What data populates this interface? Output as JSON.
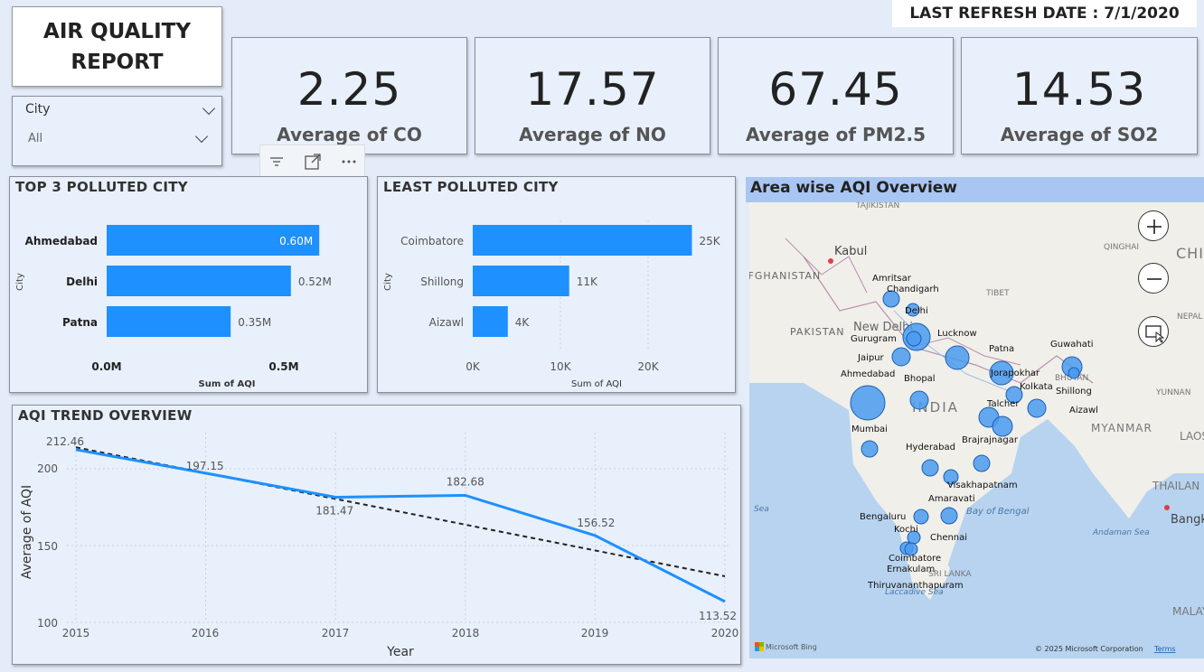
{
  "report": {
    "title_line1": "AIR QUALITY",
    "title_line2": "REPORT",
    "last_refresh": "LAST REFRESH DATE : 7/1/2020"
  },
  "slicer": {
    "label": "City",
    "value": "All"
  },
  "kpis": [
    {
      "value": "2.25",
      "caption": "Average of CO"
    },
    {
      "value": "17.57",
      "caption": "Average of NO"
    },
    {
      "value": "67.45",
      "caption": "Average of PM2.5"
    },
    {
      "value": "14.53",
      "caption": "Average of SO2"
    }
  ],
  "colors": {
    "bar": "#1e90ff",
    "line": "#1e90ff",
    "trend": "#222222",
    "map_bubble": "#4a9af0"
  },
  "chart_data": [
    {
      "type": "bar",
      "title": "TOP 3 POLLUTED CITY",
      "categories": [
        "Ahmedabad",
        "Delhi",
        "Patna"
      ],
      "values": [
        600000,
        520000,
        350000
      ],
      "data_labels": [
        "0.60M",
        "0.52M",
        "0.35M"
      ],
      "xlabel": "Sum of AQI",
      "ylabel": "City",
      "xlim": [
        0,
        650000
      ],
      "xticks": [
        "0.0M",
        "0.5M"
      ]
    },
    {
      "type": "bar",
      "title": "LEAST POLLUTED CITY",
      "categories": [
        "Coimbatore",
        "Shillong",
        "Aizawl"
      ],
      "values": [
        25000,
        11000,
        4000
      ],
      "data_labels": [
        "25K",
        "11K",
        "4K"
      ],
      "xlabel": "Sum of AQI",
      "ylabel": "City",
      "xlim": [
        0,
        26000
      ],
      "xticks": [
        "0K",
        "10K",
        "20K"
      ]
    },
    {
      "type": "line",
      "title": "AQI TREND OVERVIEW",
      "x": [
        2015,
        2016,
        2017,
        2018,
        2019,
        2020
      ],
      "values": [
        212.46,
        197.15,
        181.47,
        182.68,
        156.52,
        113.52
      ],
      "data_labels": [
        "212.46",
        "197.15",
        "181.47",
        "182.68",
        "156.52",
        "113.52"
      ],
      "trend_start": 214,
      "trend_end": 130,
      "xlabel": "Year",
      "ylabel": "Average of AQI",
      "ylim": [
        100,
        220
      ],
      "yticks": [
        "100",
        "150",
        "200"
      ],
      "xticks": [
        "2015",
        "2016",
        "2017",
        "2018",
        "2019",
        "2020"
      ]
    }
  ],
  "map": {
    "title": "Area wise AQI Overview",
    "country_labels": [
      "AFGHANISTAN",
      "PAKISTAN",
      "INDIA",
      "TIBET",
      "QINGHAI",
      "CHIN",
      "NEPAL",
      "BHUTAN",
      "MYANMAR",
      "THAILAN",
      "LAOS",
      "YUNNAN",
      "SRI LANKA",
      "TAJIKISTAN"
    ],
    "places": [
      "Kabul",
      "New Delhi",
      "Bangk",
      "Bay of Bengal",
      "Andaman Sea",
      "Laccadive Sea",
      "Sea",
      "MALAY"
    ],
    "cities": [
      "Amritsar",
      "Chandigarh",
      "Delhi",
      "Gurugram",
      "Lucknow",
      "Jaipur",
      "Patna",
      "Guwahati",
      "Ahmedabad",
      "Bhopal",
      "Jorapokhar",
      "Shillong",
      "Kolkata",
      "Talcher",
      "Aizawl",
      "Mumbai",
      "Brajrajnagar",
      "Hyderabad",
      "Visakhapatnam",
      "Amaravati",
      "Bengaluru",
      "Kochi",
      "Chennai",
      "Coimbatore",
      "Ernakulam",
      "Thiruvananthapuram"
    ],
    "attribution": "Microsoft Bing",
    "copyright": "© 2025 Microsoft Corporation",
    "terms": "Terms"
  }
}
